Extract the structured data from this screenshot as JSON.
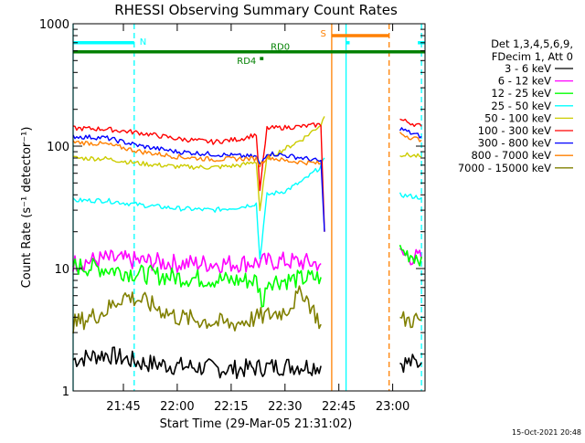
{
  "chart_data": {
    "type": "line",
    "title": "RHESSI Observing Summary Count Rates",
    "xlabel": "Start Time (29-Mar-05 21:31:02)",
    "ylabel": "Count Rate (s⁻¹ detector⁻¹)",
    "y_scale": "log",
    "ylim": [
      1,
      1000
    ],
    "xlim": [
      "21:31",
      "23:09"
    ],
    "x_ticks": [
      "21:45",
      "22:00",
      "22:15",
      "22:30",
      "22:45",
      "23:00"
    ],
    "y_ticks": [
      "1",
      "10",
      "100",
      "1000"
    ],
    "grid": false,
    "legend_position": "right",
    "legend_header": [
      "Det 1,3,4,5,6,9,",
      "FDecim 1, Att 0"
    ],
    "stamp": "15-Oct-2021 20:48",
    "flags": [
      {
        "label": "N",
        "color": "#00ffff",
        "spans": [
          [
            "21:31",
            "21:48"
          ],
          [
            "22:47",
            "22:48"
          ],
          [
            "23:07",
            "23:09"
          ]
        ],
        "level": 700
      },
      {
        "label": "S",
        "color": "#ff8000",
        "spans": [
          [
            "22:43",
            "22:59"
          ]
        ],
        "level": 800
      },
      {
        "label": "RD0",
        "color": "#008000",
        "spans": [
          [
            "21:31",
            "23:09"
          ]
        ],
        "level": 590
      },
      {
        "label": "RD4",
        "color": "#008000",
        "spans": [
          [
            "22:23",
            "22:24"
          ]
        ],
        "level": 520
      }
    ],
    "vertical_markers": [
      {
        "time": "21:31",
        "color": "#00ffff",
        "style": "solid"
      },
      {
        "time": "21:48",
        "color": "#00ffff",
        "style": "dashed"
      },
      {
        "time": "22:43",
        "color": "#ff8000",
        "style": "solid"
      },
      {
        "time": "22:47",
        "color": "#00ffff",
        "style": "solid"
      },
      {
        "time": "22:59",
        "color": "#ff8000",
        "style": "dashed"
      },
      {
        "time": "23:08",
        "color": "#00ffff",
        "style": "dashed"
      }
    ],
    "series": [
      {
        "name": "3 - 6 keV",
        "color": "#000000",
        "segments": [
          [
            [
              "21:31",
              1.8
            ],
            [
              "21:40",
              2.0
            ],
            [
              "21:50",
              1.7
            ],
            [
              "22:00",
              1.6
            ],
            [
              "22:15",
              1.5
            ],
            [
              "22:30",
              1.6
            ],
            [
              "22:40",
              1.6
            ]
          ],
          [
            [
              "23:02",
              1.7
            ],
            [
              "23:08",
              1.7
            ]
          ]
        ]
      },
      {
        "name": "6 - 12 keV",
        "color": "#ff00ff",
        "segments": [
          [
            [
              "21:31",
              11
            ],
            [
              "21:40",
              12
            ],
            [
              "21:50",
              11.5
            ],
            [
              "22:00",
              11
            ],
            [
              "22:15",
              11
            ],
            [
              "22:30",
              11.5
            ],
            [
              "22:40",
              11
            ]
          ],
          [
            [
              "23:02",
              13
            ],
            [
              "23:05",
              12.5
            ],
            [
              "23:08",
              12
            ]
          ]
        ]
      },
      {
        "name": "12 - 25 keV",
        "color": "#00ff00",
        "segments": [
          [
            [
              "21:31",
              10.5
            ],
            [
              "21:40",
              10
            ],
            [
              "21:50",
              9
            ],
            [
              "22:00",
              8.5
            ],
            [
              "22:15",
              8
            ],
            [
              "22:22",
              8
            ],
            [
              "22:24",
              5
            ],
            [
              "22:25",
              8
            ],
            [
              "22:30",
              8
            ],
            [
              "22:40",
              8.5
            ]
          ],
          [
            [
              "23:02",
              14
            ],
            [
              "23:05",
              13
            ],
            [
              "23:08",
              12.5
            ]
          ]
        ]
      },
      {
        "name": "25 - 50 keV",
        "color": "#00ffff",
        "segments": [
          [
            [
              "21:31",
              36
            ],
            [
              "21:40",
              36
            ],
            [
              "21:50",
              33
            ],
            [
              "22:00",
              31
            ],
            [
              "22:10",
              30
            ],
            [
              "22:18",
              32
            ],
            [
              "22:22",
              34
            ],
            [
              "22:23",
              12
            ],
            [
              "22:25",
              40
            ],
            [
              "22:30",
              43
            ],
            [
              "22:35",
              52
            ],
            [
              "22:40",
              68
            ],
            [
              "22:41",
              80
            ]
          ],
          [
            [
              "23:02",
              40
            ],
            [
              "23:05",
              39
            ],
            [
              "23:08",
              38
            ]
          ]
        ]
      },
      {
        "name": "50 - 100 keV",
        "color": "#cccc00",
        "segments": [
          [
            [
              "21:31",
              80
            ],
            [
              "21:40",
              79
            ],
            [
              "21:50",
              72
            ],
            [
              "22:00",
              68
            ],
            [
              "22:10",
              67
            ],
            [
              "22:18",
              70
            ],
            [
              "22:22",
              75
            ],
            [
              "22:23",
              30
            ],
            [
              "22:25",
              80
            ],
            [
              "22:30",
              95
            ],
            [
              "22:35",
              115
            ],
            [
              "22:40",
              150
            ],
            [
              "22:41",
              175
            ]
          ],
          [
            [
              "23:02",
              86
            ],
            [
              "23:05",
              84
            ],
            [
              "23:08",
              82
            ]
          ]
        ]
      },
      {
        "name": "100 - 300 keV",
        "color": "#ff0000",
        "segments": [
          [
            [
              "21:31",
              140
            ],
            [
              "21:40",
              138
            ],
            [
              "21:50",
              128
            ],
            [
              "22:00",
              115
            ],
            [
              "22:10",
              108
            ],
            [
              "22:18",
              115
            ],
            [
              "22:22",
              125
            ],
            [
              "22:23",
              44
            ],
            [
              "22:25",
              140
            ],
            [
              "22:30",
              142
            ],
            [
              "22:35",
              145
            ],
            [
              "22:40",
              150
            ],
            [
              "22:41",
              20
            ]
          ],
          [
            [
              "23:02",
              165
            ],
            [
              "23:05",
              155
            ],
            [
              "23:08",
              145
            ]
          ]
        ]
      },
      {
        "name": "300 - 800 keV",
        "color": "#0000ff",
        "segments": [
          [
            [
              "21:31",
              120
            ],
            [
              "21:40",
              117
            ],
            [
              "21:50",
              100
            ],
            [
              "22:00",
              90
            ],
            [
              "22:10",
              86
            ],
            [
              "22:18",
              83
            ],
            [
              "22:22",
              82
            ],
            [
              "22:23",
              70
            ],
            [
              "22:25",
              88
            ],
            [
              "22:30",
              84
            ],
            [
              "22:35",
              80
            ],
            [
              "22:40",
              75
            ],
            [
              "22:41",
              20
            ]
          ],
          [
            [
              "23:02",
              140
            ],
            [
              "23:05",
              128
            ],
            [
              "23:08",
              120
            ]
          ]
        ]
      },
      {
        "name": "800 - 7000 keV",
        "color": "#ff8000",
        "segments": [
          [
            [
              "21:31",
              108
            ],
            [
              "21:40",
              104
            ],
            [
              "21:50",
              90
            ],
            [
              "22:00",
              82
            ],
            [
              "22:10",
              78
            ],
            [
              "22:18",
              79
            ],
            [
              "22:22",
              79
            ],
            [
              "22:23",
              70
            ],
            [
              "22:25",
              82
            ],
            [
              "22:30",
              76
            ],
            [
              "22:35",
              74
            ],
            [
              "22:40",
              72
            ]
          ],
          [
            [
              "23:02",
              128
            ],
            [
              "23:05",
              118
            ],
            [
              "23:08",
              112
            ]
          ]
        ]
      },
      {
        "name": "7000 - 15000 keV",
        "color": "#808000",
        "segments": [
          [
            [
              "21:31",
              3.5
            ],
            [
              "21:40",
              4.5
            ],
            [
              "21:45",
              6
            ],
            [
              "21:50",
              5.5
            ],
            [
              "22:00",
              4.0
            ],
            [
              "22:15",
              3.5
            ],
            [
              "22:30",
              4.5
            ],
            [
              "22:35",
              6.5
            ],
            [
              "22:40",
              3.5
            ]
          ],
          [
            [
              "23:02",
              3.8
            ],
            [
              "23:08",
              3.8
            ]
          ]
        ]
      }
    ]
  }
}
